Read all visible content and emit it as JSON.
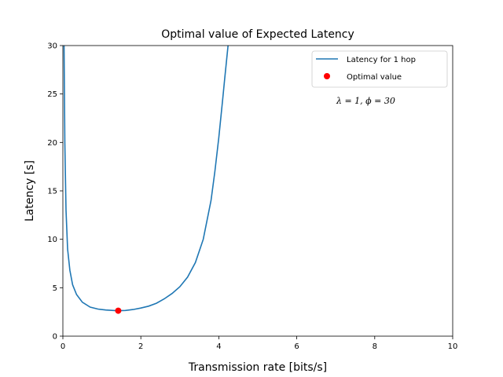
{
  "chart_data": {
    "type": "line",
    "title": "Optimal value of Expected Latency",
    "xlabel": "Transmission rate [bits/s]",
    "ylabel": "Latency [s]",
    "xlim": [
      0,
      10
    ],
    "ylim": [
      0,
      30
    ],
    "xticks": [
      0,
      2,
      4,
      6,
      8,
      10
    ],
    "yticks": [
      0,
      5,
      10,
      15,
      20,
      25,
      30
    ],
    "grid": false,
    "legend_position": "top-right",
    "series": [
      {
        "name": "Latency for 1 hop",
        "color": "#1f77b4",
        "type": "line",
        "x": [
          0.03,
          0.05,
          0.08,
          0.12,
          0.18,
          0.25,
          0.35,
          0.5,
          0.7,
          0.9,
          1.1,
          1.3,
          1.42,
          1.6,
          1.8,
          2.0,
          2.2,
          2.4,
          2.6,
          2.8,
          3.0,
          3.2,
          3.4,
          3.6,
          3.8,
          3.9,
          4.0,
          4.1,
          4.15,
          4.2,
          4.25
        ],
        "y": [
          30,
          20,
          13,
          9,
          6.8,
          5.3,
          4.3,
          3.5,
          3.0,
          2.8,
          2.7,
          2.65,
          2.63,
          2.65,
          2.75,
          2.9,
          3.1,
          3.4,
          3.85,
          4.4,
          5.1,
          6.1,
          7.6,
          10.0,
          14.0,
          17.0,
          20.5,
          24.5,
          26.5,
          28.5,
          30.5
        ]
      },
      {
        "name": "Optimal value",
        "color": "#ff0000",
        "type": "scatter",
        "x": [
          1.42
        ],
        "y": [
          2.63
        ]
      }
    ],
    "annotation": "λ = 1,  ϕ = 30"
  }
}
